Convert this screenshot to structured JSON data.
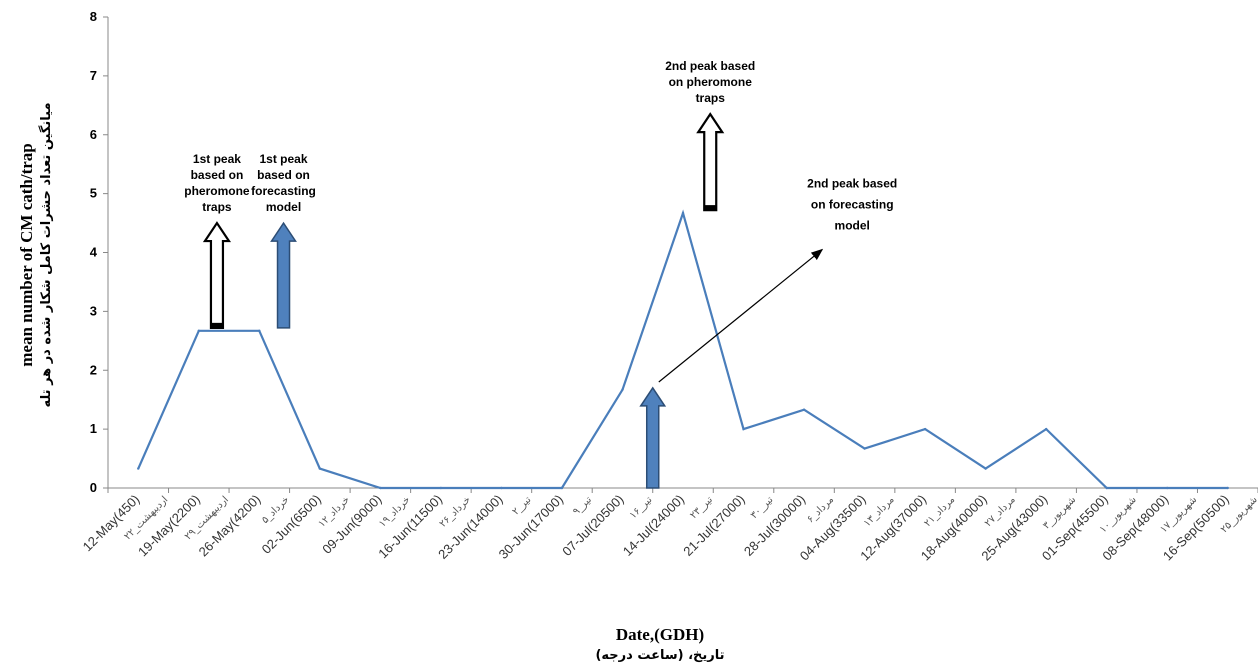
{
  "chart_data": {
    "type": "line",
    "xlabel": "Date,(GDH)",
    "xlabel_fa": "تاریخ، (ساعت درجه)",
    "ylabel": "mean number of CM cath/trap",
    "ylabel_fa": "میانگین تعداد حشرات کامل شکار شده در هر تله",
    "ylim": [
      0,
      8
    ],
    "yticks": [
      0,
      1,
      2,
      3,
      4,
      5,
      6,
      7,
      8
    ],
    "grid": false,
    "legend": "none",
    "line_color": "#4A7EBB",
    "categories": [
      "12-May(450)",
      "19-May(2200)",
      "26-May(4200)",
      "02-Jun(6500)",
      "09-Jun(9000)",
      "16-Jun(11500)",
      "23-Jun(14000)",
      "30-Jun(17000)",
      "07-Jul(20500)",
      "14-Jul(24000)",
      "21-Jul(27000)",
      "28-Jul(30000)",
      "04-Aug(33500)",
      "12-Aug(37000)",
      "18-Aug(40000)",
      "25-Aug(43000)",
      "01-Sep(45500)",
      "08-Sep(48000)",
      "16-Sep(50500)"
    ],
    "categories_fa": [
      "اردیبهشت_۲۲",
      "اردیبهشت_۲۹",
      "خرداد_۵",
      "خرداد_۱۲",
      "خرداد_۱۹",
      "خرداد_۲۶",
      "تیر_۲",
      "تیر_۹",
      "تیر_۱۶",
      "تیر_۲۳",
      "تیر_۳۰",
      "مرداد_۶",
      "مرداد_۱۳",
      "مرداد_۲۱",
      "مرداد_۲۷",
      "شهریور_۳",
      "شهریور_۱۰",
      "شهریور_۱۷",
      "شهریور_۲۵"
    ],
    "series": [
      {
        "values": [
          0.33,
          2.67,
          2.67,
          0.33,
          0,
          0,
          0,
          0,
          1.67,
          4.67,
          1.0,
          1.33,
          0.67,
          1.0,
          0.33,
          1.0,
          0,
          0,
          0
        ]
      }
    ],
    "annotations": [
      {
        "id": "peak1-trap",
        "lines": [
          "1st peak",
          "based on",
          "pheromone",
          "traps"
        ],
        "arrow": "hollow",
        "x_index": 1.3,
        "y_from": 2.72,
        "y_to": 4.5
      },
      {
        "id": "peak1-model",
        "lines": [
          "1st peak",
          "based on",
          "forecasting",
          "model"
        ],
        "arrow": "filled",
        "x_index": 2.4,
        "y_from": 2.72,
        "y_to": 4.5
      },
      {
        "id": "peak2-trap",
        "lines": [
          "2nd peak based",
          "on pheromone",
          "traps"
        ],
        "arrow": "hollow",
        "x_index": 9.45,
        "y_from": 4.72,
        "y_to": 6.35
      },
      {
        "id": "peak2-model",
        "lines": [
          "2nd peak based",
          "on forecasting",
          "model"
        ],
        "arrow": "filled",
        "x_index": 8.5,
        "y_from": 0,
        "y_to": 1.7
      }
    ],
    "pointer_line": {
      "from": [
        8.6,
        1.8
      ],
      "to": [
        11.3,
        4.05
      ],
      "label": "peak2-model"
    }
  }
}
